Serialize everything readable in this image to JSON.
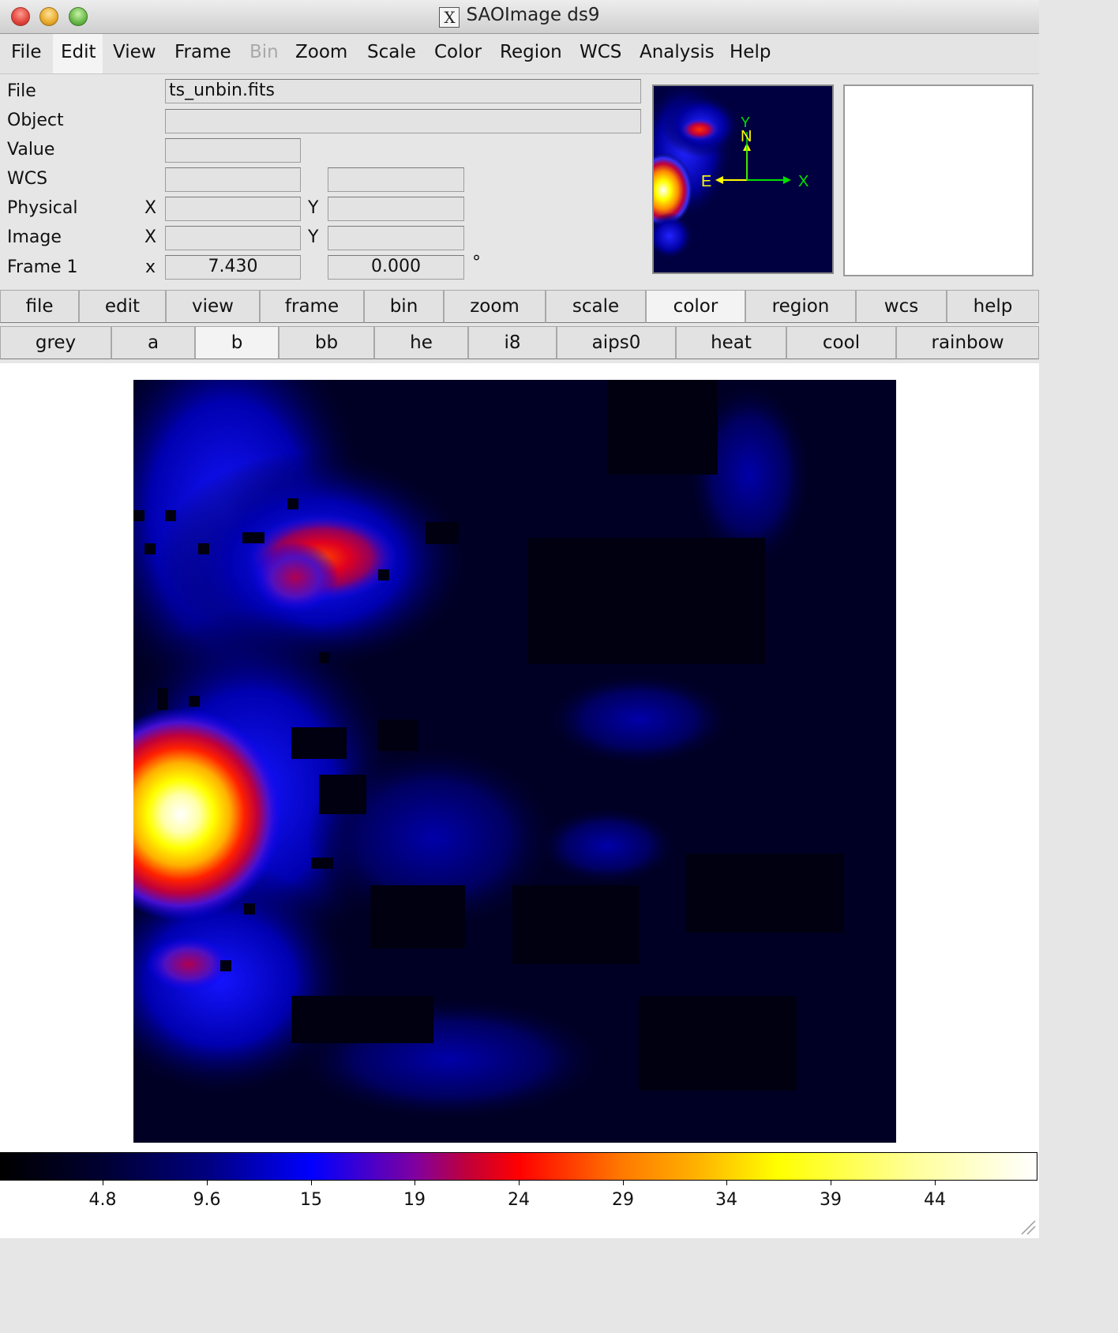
{
  "window": {
    "title": "SAOImage ds9"
  },
  "menu": [
    "File",
    "Edit",
    "View",
    "Frame",
    "Bin",
    "Zoom",
    "Scale",
    "Color",
    "Region",
    "WCS",
    "Analysis",
    "Help"
  ],
  "menu_active": "Edit",
  "menu_disabled": "Bin",
  "info": {
    "file_label": "File",
    "file_value": "ts_unbin.fits",
    "object_label": "Object",
    "object_value": "",
    "value_label": "Value",
    "value_value": "",
    "wcs_label": "WCS",
    "physical_label": "Physical",
    "image_label": "Image",
    "frame_label": "Frame 1",
    "x_upper": "X",
    "y_upper": "Y",
    "x_lower": "x",
    "frame_zoom": "7.430",
    "frame_angle": "0.000",
    "degree_symbol": "°"
  },
  "panner": {
    "n_label": "N",
    "e_label": "E",
    "x_label": "X",
    "y_label": "Y"
  },
  "buttonbar": [
    "file",
    "edit",
    "view",
    "frame",
    "bin",
    "zoom",
    "scale",
    "color",
    "region",
    "wcs",
    "help"
  ],
  "buttonbar_selected": "color",
  "colormaps": [
    "grey",
    "a",
    "b",
    "bb",
    "he",
    "i8",
    "aips0",
    "heat",
    "cool",
    "rainbow"
  ],
  "colormap_selected": "b",
  "colorbar": {
    "ticks": [
      "4.8",
      "9.6",
      "15",
      "19",
      "24",
      "29",
      "34",
      "39",
      "44"
    ]
  }
}
